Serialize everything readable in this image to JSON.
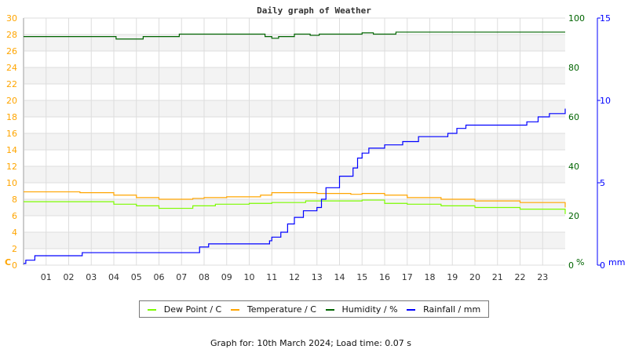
{
  "chart_data": {
    "type": "line",
    "title": "Daily graph of Weather",
    "x_ticks": [
      "01",
      "02",
      "03",
      "04",
      "05",
      "06",
      "07",
      "08",
      "09",
      "10",
      "11",
      "12",
      "13",
      "14",
      "15",
      "16",
      "17",
      "18",
      "19",
      "20",
      "21",
      "22",
      "23"
    ],
    "xlim": [
      0,
      24
    ],
    "axes": {
      "left": {
        "label": "C",
        "ylim": [
          0,
          30
        ],
        "ticks": [
          "0",
          "2",
          "4",
          "6",
          "8",
          "10",
          "12",
          "14",
          "16",
          "18",
          "20",
          "22",
          "24",
          "26",
          "28",
          "30"
        ],
        "color": "#ffa500"
      },
      "right_humidity": {
        "label": "%",
        "ylim": [
          0,
          100
        ],
        "ticks": [
          "0",
          "20",
          "40",
          "60",
          "80",
          "100"
        ],
        "color": "#006400"
      },
      "right_rain": {
        "label": "mm",
        "ylim": [
          0,
          15
        ],
        "ticks": [
          "0",
          "5",
          "10",
          "15"
        ],
        "color": "#0000ff"
      }
    },
    "grid": true,
    "legend_placement": "bottom",
    "series": [
      {
        "name": "Dew Point / C",
        "axis": "left",
        "color": "#7cfc00",
        "x": [
          0,
          3.5,
          4,
          5,
          6,
          7,
          7.5,
          8.5,
          10,
          11,
          12.5,
          13.5,
          15,
          16,
          17,
          18.5,
          20,
          22,
          24
        ],
        "y": [
          7.7,
          7.7,
          7.4,
          7.2,
          6.9,
          6.9,
          7.2,
          7.4,
          7.5,
          7.6,
          7.8,
          7.8,
          7.9,
          7.5,
          7.4,
          7.2,
          7.0,
          6.8,
          6.2
        ]
      },
      {
        "name": "Temperature / C",
        "axis": "left",
        "color": "#ffa500",
        "x": [
          0,
          2.5,
          4,
          5,
          6,
          7,
          7.5,
          8,
          9,
          10.5,
          11,
          12,
          13,
          14.5,
          15,
          16,
          17,
          18.5,
          20,
          22,
          24
        ],
        "y": [
          8.9,
          8.8,
          8.5,
          8.2,
          8.0,
          8.0,
          8.1,
          8.2,
          8.3,
          8.5,
          8.8,
          8.8,
          8.7,
          8.6,
          8.7,
          8.5,
          8.2,
          8.0,
          7.8,
          7.6,
          7.0
        ]
      },
      {
        "name": "Humidity / %",
        "axis": "right_humidity",
        "color": "#006400",
        "x": [
          0,
          4.1,
          5.3,
          6.9,
          10.7,
          11.0,
          11.3,
          12.0,
          12.7,
          13.1,
          15.0,
          15.5,
          16.5,
          18.5,
          24
        ],
        "y": [
          92.5,
          91.5,
          92.5,
          93.5,
          92.5,
          91.8,
          92.5,
          93.5,
          93,
          93.5,
          94,
          93.5,
          94.3,
          94.3,
          94.3
        ]
      },
      {
        "name": "Rainfall / mm",
        "axis": "right_rain",
        "color": "#0000ff",
        "x": [
          0,
          0.1,
          0.5,
          2.6,
          7.8,
          8.2,
          10.9,
          11.0,
          11.4,
          11.7,
          12.0,
          12.4,
          13.0,
          13.2,
          13.4,
          14.0,
          14.6,
          14.8,
          15.0,
          15.3,
          16.0,
          16.8,
          17.5,
          18.8,
          19.2,
          19.6,
          22.3,
          22.8,
          23.3,
          24
        ],
        "y": [
          0.1,
          0.3,
          0.57,
          0.76,
          1.1,
          1.29,
          1.48,
          1.7,
          2.0,
          2.5,
          2.9,
          3.3,
          3.5,
          4.0,
          4.7,
          5.4,
          5.9,
          6.5,
          6.8,
          7.1,
          7.3,
          7.5,
          7.8,
          8.0,
          8.3,
          8.5,
          8.7,
          9.0,
          9.2,
          9.5
        ]
      }
    ]
  },
  "footer": "Graph for: 10th March 2024; Load time: 0.07 s"
}
